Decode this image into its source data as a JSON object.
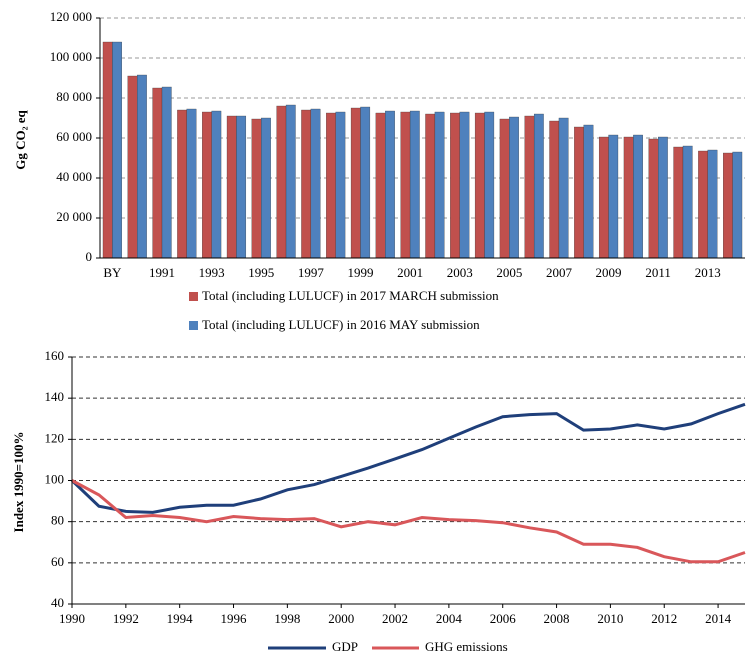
{
  "chart_data": [
    {
      "type": "bar",
      "y_label": "Gg CO₂ eq",
      "categories": [
        "BY",
        null,
        "1991",
        null,
        "1993",
        null,
        "1995",
        null,
        "1997",
        null,
        "1999",
        null,
        "2001",
        null,
        "2003",
        null,
        "2005",
        null,
        "2007",
        null,
        "2009",
        null,
        "2011",
        null,
        "2013",
        null
      ],
      "series": [
        {
          "name": "Total (including LULUCF) in 2017 MARCH submission",
          "color": "#c0504d",
          "values": [
            108000,
            91000,
            85000,
            74000,
            73000,
            71000,
            69500,
            76000,
            74000,
            72500,
            75000,
            72500,
            73000,
            72000,
            72500,
            72500,
            69500,
            71000,
            68500,
            65500,
            60500,
            60500,
            59500,
            55500,
            53500,
            52500
          ]
        },
        {
          "name": "Total (including LULUCF) in 2016 MAY submission",
          "color": "#4f81bd",
          "values": [
            108000,
            91500,
            85500,
            74500,
            73500,
            71000,
            70000,
            76500,
            74500,
            73000,
            75500,
            73500,
            73500,
            73000,
            73000,
            73000,
            70500,
            72000,
            70000,
            66500,
            61500,
            61500,
            60500,
            56000,
            54000,
            53000
          ]
        }
      ],
      "ylim": [
        0,
        120000
      ],
      "yticks": [
        {
          "value": 0,
          "label": "0"
        },
        {
          "value": 20000,
          "label": "20 000"
        },
        {
          "value": 40000,
          "label": "40 000"
        },
        {
          "value": 60000,
          "label": "60 000"
        },
        {
          "value": 80000,
          "label": "80 000"
        },
        {
          "value": 100000,
          "label": "100 000"
        },
        {
          "value": 120000,
          "label": "120 000"
        }
      ],
      "grid": true,
      "legend": "bottom"
    },
    {
      "type": "line",
      "y_label": "Index  1990=100%",
      "x": [
        1990,
        1991,
        1992,
        1993,
        1994,
        1995,
        1996,
        1997,
        1998,
        1999,
        2000,
        2001,
        2002,
        2003,
        2004,
        2005,
        2006,
        2007,
        2008,
        2009,
        2010,
        2011,
        2012,
        2013,
        2014,
        2015
      ],
      "series": [
        {
          "name": "GDP",
          "color": "#1f3f7a",
          "values": [
            100,
            87.5,
            85,
            84.5,
            87,
            88,
            88,
            91,
            95.5,
            98,
            102,
            106,
            110.5,
            115,
            120.5,
            126,
            131,
            132,
            132.5,
            124.5,
            125,
            127,
            125,
            127.5,
            132.5,
            137
          ]
        },
        {
          "name": "GHG emissions",
          "color": "#d9575a",
          "values": [
            100,
            93,
            82,
            83,
            82,
            80,
            82.5,
            81.5,
            81,
            81.5,
            77.5,
            80,
            78.5,
            82,
            81,
            80.5,
            79.5,
            77,
            75,
            69,
            69,
            67.5,
            63,
            60.5,
            60.5,
            65
          ]
        }
      ],
      "xlim": [
        1990,
        2015
      ],
      "xticks": [
        1990,
        1992,
        1994,
        1996,
        1998,
        2000,
        2002,
        2004,
        2006,
        2008,
        2010,
        2012,
        2014
      ],
      "ylim": [
        40,
        160
      ],
      "yticks": [
        40,
        60,
        80,
        100,
        120,
        140,
        160
      ],
      "grid": true,
      "legend": "bottom"
    }
  ]
}
